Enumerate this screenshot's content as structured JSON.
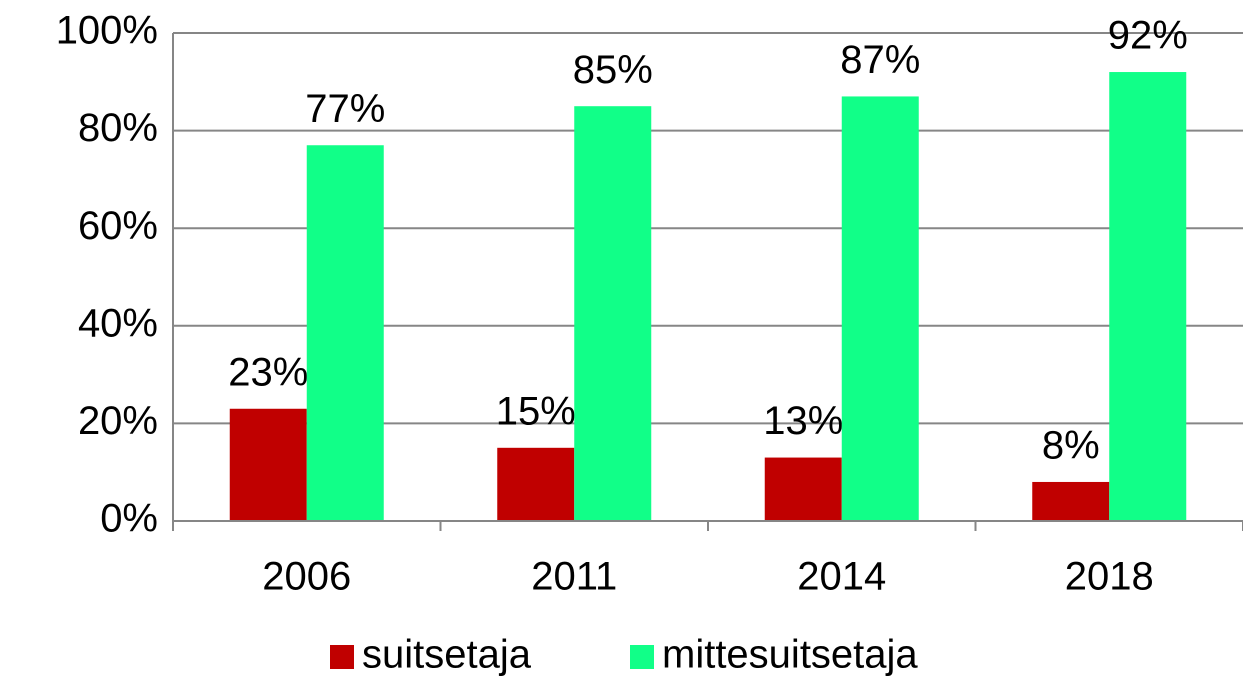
{
  "chart_data": {
    "type": "bar",
    "categories": [
      "2006",
      "2011",
      "2014",
      "2018"
    ],
    "series": [
      {
        "name": "suitsetaja",
        "color": "#c00000",
        "values": [
          23,
          15,
          13,
          8
        ],
        "value_labels": [
          "23%",
          "15%",
          "13%",
          "8%"
        ]
      },
      {
        "name": "mittesuitsetaja",
        "color": "#11ff88",
        "values": [
          77,
          85,
          87,
          92
        ],
        "value_labels": [
          "77%",
          "85%",
          "87%",
          "92%"
        ]
      }
    ],
    "ylim": [
      0,
      100
    ],
    "yticks": [
      {
        "value": 0,
        "label": "0%"
      },
      {
        "value": 20,
        "label": "20%"
      },
      {
        "value": 40,
        "label": "40%"
      },
      {
        "value": 60,
        "label": "60%"
      },
      {
        "value": 80,
        "label": "80%"
      },
      {
        "value": 100,
        "label": "100%"
      }
    ],
    "grid": true,
    "legend": "bottom"
  }
}
